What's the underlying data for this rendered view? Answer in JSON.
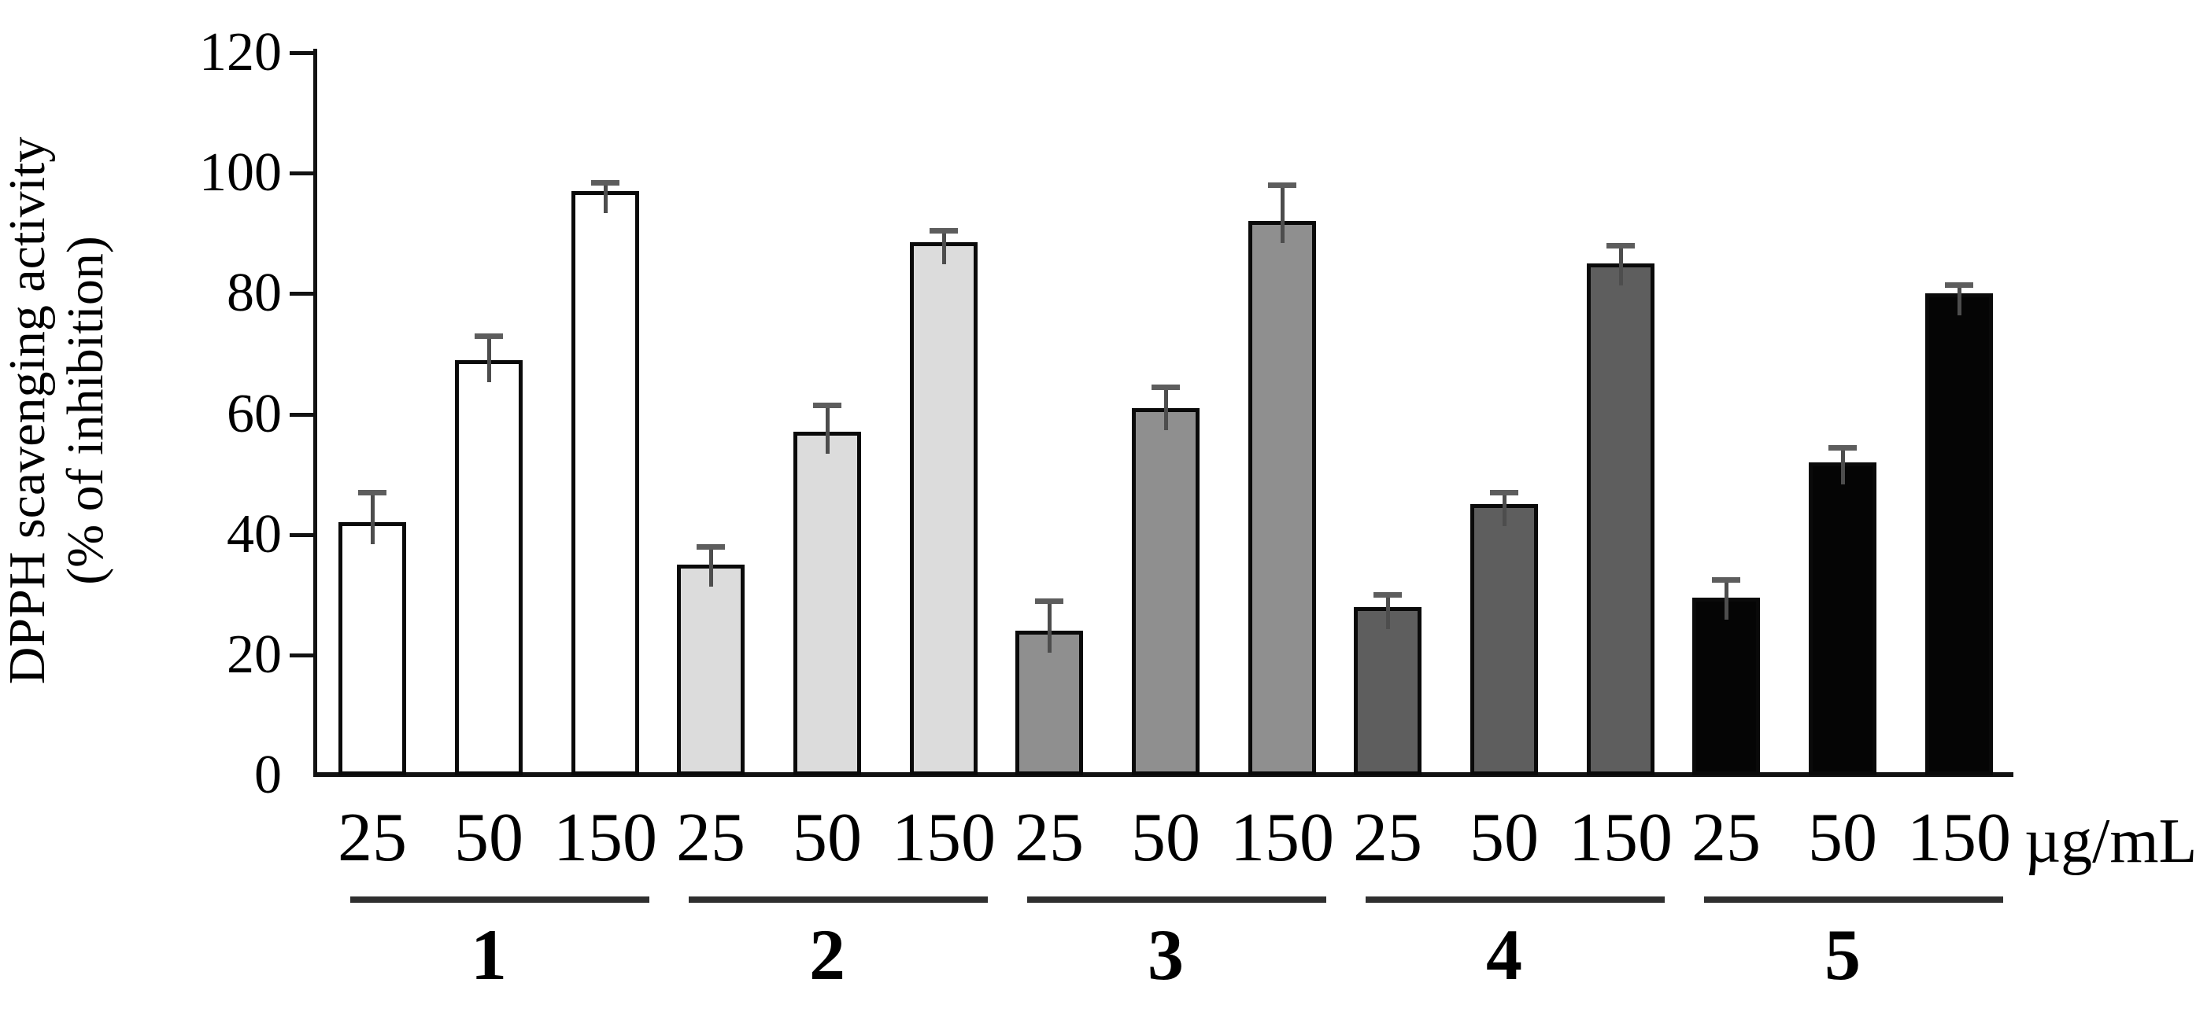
{
  "y_axis": {
    "title_line1": "DPPH scavenging activity",
    "title_line2": "(% of inhibition)"
  },
  "chart_data": {
    "type": "bar",
    "title": "",
    "ylabel": "DPPH scavenging activity (% of inhibition)",
    "ylim": [
      0,
      120
    ],
    "yticks": [
      0,
      20,
      40,
      60,
      80,
      100,
      120
    ],
    "grid": "off",
    "legend": "none",
    "error_bars": "upper only, capped, gray",
    "x_unit_label": "µg/mL",
    "concentrations_ug_per_mL": [
      25,
      50,
      150
    ],
    "concentration_labels": [
      "25",
      "50",
      "150"
    ],
    "groups": [
      "1",
      "2",
      "3",
      "4",
      "5"
    ],
    "series": [
      {
        "group": "1",
        "fill": "#ffffff",
        "values": [
          42,
          69,
          97
        ],
        "errors": [
          5,
          4,
          1.5
        ]
      },
      {
        "group": "2",
        "fill": "#dcdcdc",
        "values": [
          35,
          57,
          88.5
        ],
        "errors": [
          3,
          4.5,
          2
        ]
      },
      {
        "group": "3",
        "fill": "#8f8f8f",
        "values": [
          24,
          61,
          92
        ],
        "errors": [
          5,
          3.5,
          6
        ]
      },
      {
        "group": "4",
        "fill": "#5e5e5e",
        "values": [
          28,
          45,
          85
        ],
        "errors": [
          2,
          2,
          3
        ]
      },
      {
        "group": "5",
        "fill": "#050505",
        "values": [
          29.5,
          52,
          80
        ],
        "errors": [
          3,
          2.5,
          1.5
        ]
      }
    ]
  }
}
